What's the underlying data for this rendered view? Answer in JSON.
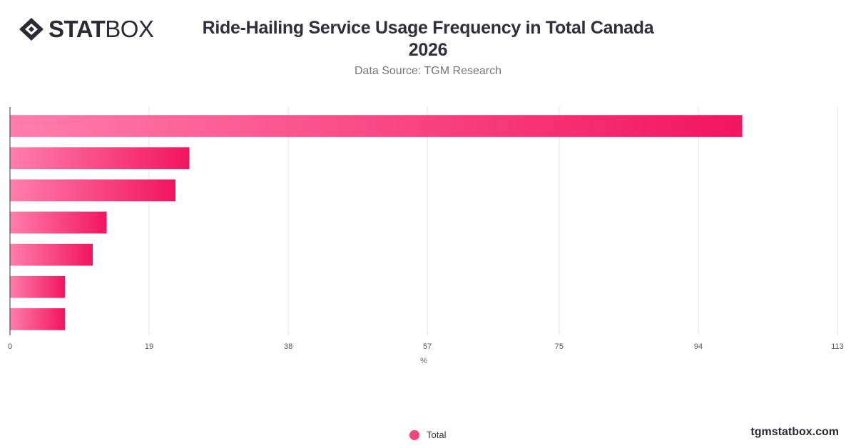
{
  "brand": {
    "logo_stat": "STAT",
    "logo_box": "BOX",
    "site": "tgmstatbox.com"
  },
  "colors": {
    "bar_start": "#ff7eab",
    "bar_end": "#f2155f",
    "legend": "#f4437f"
  },
  "chart_data": {
    "type": "bar",
    "orientation": "horizontal",
    "title_line1": "Ride-Hailing Service Usage Frequency in Total Canada",
    "title_line2": "2026",
    "subtitle": "Data Source: TGM Research",
    "xlabel": "%",
    "xlim": [
      0,
      113
    ],
    "xticks": [
      0,
      19,
      38,
      57,
      75,
      94,
      113
    ],
    "categories": [
      "",
      "",
      "",
      "",
      "",
      "",
      ""
    ],
    "series": [
      {
        "name": "Total",
        "values": [
          100,
          24.5,
          22.6,
          13.2,
          11.3,
          7.5,
          7.5
        ]
      }
    ],
    "grid": true,
    "legend_position": "bottom-center"
  }
}
